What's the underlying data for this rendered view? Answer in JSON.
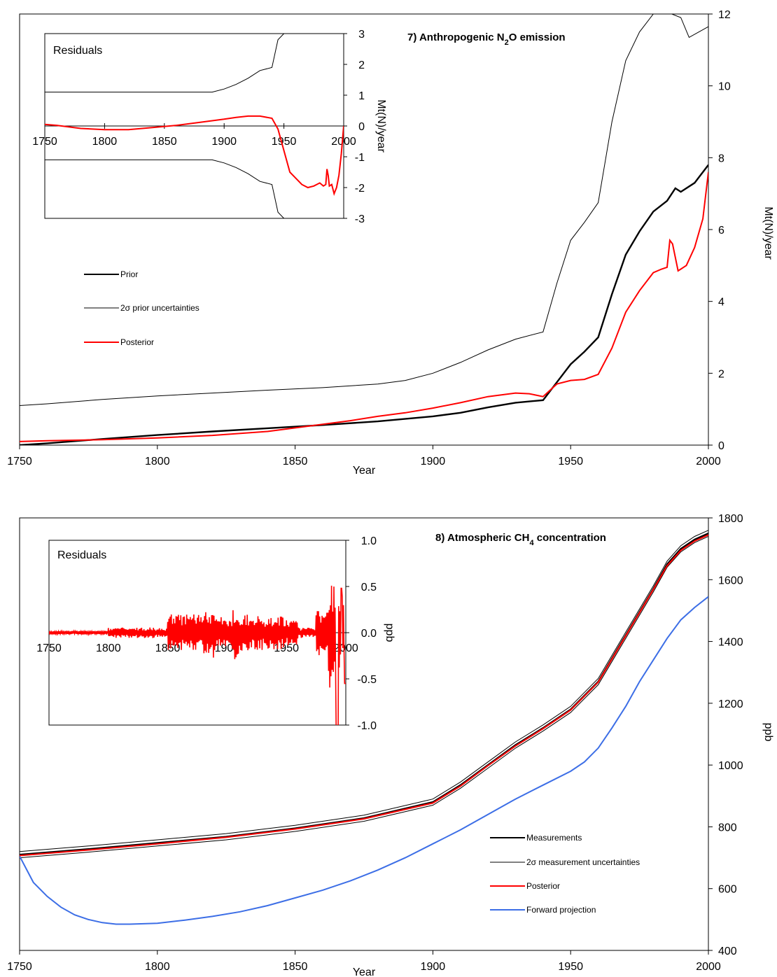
{
  "chart_data": [
    {
      "id": "n2o",
      "type": "line",
      "title_prefix": "7) Anthropogenic N",
      "title_sub": "2",
      "title_suffix": "O emission",
      "xlabel": "Year",
      "ylabel": "Mt(N)/year",
      "xlim": [
        1750,
        2000
      ],
      "ylim": [
        0,
        12
      ],
      "x_ticks": [
        "1750",
        "1800",
        "1850",
        "1900",
        "1950",
        "2000"
      ],
      "y_ticks": [
        "0",
        "2",
        "4",
        "6",
        "8",
        "10",
        "12"
      ],
      "legend": [
        "Prior",
        "2σ prior uncertainties",
        "Posterior"
      ],
      "colors": {
        "prior": "#000000",
        "uncertainty": "#000000",
        "posterior": "#ff0000"
      },
      "series": [
        {
          "key": "prior",
          "name": "Prior",
          "x": [
            1750,
            1760,
            1780,
            1800,
            1820,
            1840,
            1860,
            1880,
            1900,
            1910,
            1920,
            1930,
            1940,
            1945,
            1950,
            1955,
            1960,
            1965,
            1970,
            1975,
            1980,
            1985,
            1988,
            1990,
            1995,
            2000
          ],
          "y": [
            0.0,
            0.05,
            0.17,
            0.28,
            0.38,
            0.47,
            0.56,
            0.66,
            0.8,
            0.9,
            1.05,
            1.18,
            1.25,
            1.75,
            2.25,
            2.6,
            3.0,
            4.2,
            5.3,
            5.95,
            6.5,
            6.8,
            7.15,
            7.05,
            7.3,
            7.8
          ]
        },
        {
          "key": "upper",
          "name": "2σ prior uncertainties",
          "x": [
            1750,
            1760,
            1780,
            1800,
            1820,
            1840,
            1860,
            1880,
            1890,
            1900,
            1910,
            1920,
            1930,
            1940,
            1945,
            1950,
            1955,
            1960,
            1965,
            1970,
            1975,
            1980,
            1985,
            1990,
            1993,
            2000
          ],
          "y": [
            1.1,
            1.15,
            1.27,
            1.37,
            1.45,
            1.53,
            1.6,
            1.7,
            1.8,
            2.0,
            2.3,
            2.65,
            2.95,
            3.15,
            4.5,
            5.7,
            6.2,
            6.75,
            9.0,
            10.7,
            11.5,
            12.0,
            12.05,
            11.9,
            11.35,
            11.65
          ]
        },
        {
          "key": "posterior",
          "name": "Posterior",
          "x": [
            1750,
            1760,
            1780,
            1800,
            1820,
            1840,
            1860,
            1870,
            1880,
            1890,
            1900,
            1910,
            1920,
            1930,
            1935,
            1940,
            1945,
            1950,
            1955,
            1960,
            1965,
            1970,
            1975,
            1980,
            1983,
            1985,
            1986,
            1987,
            1989,
            1990,
            1992,
            1995,
            1998,
            2000
          ],
          "y": [
            0.1,
            0.12,
            0.15,
            0.2,
            0.27,
            0.38,
            0.58,
            0.68,
            0.8,
            0.9,
            1.03,
            1.18,
            1.35,
            1.45,
            1.43,
            1.35,
            1.7,
            1.8,
            1.83,
            1.97,
            2.7,
            3.7,
            4.3,
            4.8,
            4.9,
            4.95,
            5.7,
            5.6,
            4.85,
            4.9,
            5.0,
            5.5,
            6.3,
            7.6
          ]
        }
      ],
      "inset": {
        "title": "Residuals",
        "ylabel": "Mt(N)/year",
        "xlim": [
          1750,
          2000
        ],
        "ylim": [
          -3,
          3
        ],
        "x_ticks": [
          "1750",
          "1800",
          "1850",
          "1900",
          "1950",
          "2000"
        ],
        "y_ticks": [
          "-3",
          "-2",
          "-1",
          "0",
          "1",
          "2",
          "3"
        ],
        "series": [
          {
            "key": "upper",
            "x": [
              1750,
              1890,
              1900,
              1910,
              1920,
              1930,
              1940,
              1945,
              1950
            ],
            "y": [
              1.1,
              1.1,
              1.2,
              1.35,
              1.55,
              1.8,
              1.9,
              2.8,
              3.0
            ]
          },
          {
            "key": "lower",
            "x": [
              1750,
              1890,
              1900,
              1910,
              1920,
              1930,
              1940,
              1945,
              1950
            ],
            "y": [
              -1.1,
              -1.1,
              -1.2,
              -1.35,
              -1.55,
              -1.8,
              -1.9,
              -2.8,
              -3.0
            ]
          },
          {
            "key": "residual",
            "x": [
              1750,
              1760,
              1780,
              1800,
              1820,
              1840,
              1860,
              1880,
              1900,
              1910,
              1920,
              1930,
              1940,
              1945,
              1950,
              1955,
              1960,
              1965,
              1970,
              1975,
              1980,
              1983,
              1985,
              1986,
              1987,
              1988,
              1990,
              1992,
              1994,
              1996,
              1998,
              2000
            ],
            "y": [
              0.05,
              0.02,
              -0.08,
              -0.12,
              -0.12,
              -0.05,
              0.02,
              0.12,
              0.22,
              0.28,
              0.32,
              0.32,
              0.25,
              -0.1,
              -0.8,
              -1.5,
              -1.7,
              -1.9,
              -2.0,
              -1.95,
              -1.85,
              -1.95,
              -1.9,
              -1.4,
              -1.6,
              -1.95,
              -1.9,
              -2.2,
              -2.0,
              -1.6,
              -0.9,
              0.0
            ]
          }
        ]
      }
    },
    {
      "id": "ch4",
      "type": "line",
      "title_prefix": "8) Atmospheric CH",
      "title_sub": "4",
      "title_suffix": " concentration",
      "xlabel": "Year",
      "ylabel": "ppb",
      "xlim": [
        1750,
        2000
      ],
      "ylim": [
        400,
        1800
      ],
      "x_ticks": [
        "1750",
        "1800",
        "1850",
        "1900",
        "1950",
        "2000"
      ],
      "y_ticks": [
        "400",
        "600",
        "800",
        "1000",
        "1200",
        "1400",
        "1600",
        "1800"
      ],
      "legend": [
        "Measurements",
        "2σ measurement uncertainties",
        "Posterior",
        "Forward projection"
      ],
      "colors": {
        "measurements": "#000000",
        "uncertainty": "#000000",
        "posterior": "#ff0000",
        "forward": "#3c6ee6"
      },
      "series": [
        {
          "key": "measurements",
          "name": "Measurements",
          "x": [
            1750,
            1775,
            1800,
            1825,
            1850,
            1875,
            1900,
            1910,
            1920,
            1930,
            1940,
            1950,
            1960,
            1970,
            1980,
            1985,
            1990,
            1995,
            2000
          ],
          "y": [
            710,
            728,
            748,
            768,
            795,
            828,
            880,
            935,
            1000,
            1065,
            1120,
            1180,
            1270,
            1420,
            1570,
            1650,
            1700,
            1730,
            1750
          ]
        },
        {
          "key": "posterior",
          "name": "Posterior",
          "x": [
            1750,
            1775,
            1800,
            1825,
            1850,
            1875,
            1900,
            1910,
            1920,
            1930,
            1940,
            1950,
            1960,
            1970,
            1980,
            1985,
            1990,
            1995,
            2000
          ],
          "y": [
            707,
            725,
            745,
            766,
            793,
            826,
            877,
            932,
            998,
            1062,
            1118,
            1178,
            1268,
            1418,
            1568,
            1645,
            1695,
            1725,
            1745
          ]
        },
        {
          "key": "forward",
          "name": "Forward projection",
          "x": [
            1750,
            1755,
            1760,
            1765,
            1770,
            1775,
            1780,
            1785,
            1790,
            1800,
            1810,
            1820,
            1830,
            1840,
            1850,
            1860,
            1870,
            1880,
            1890,
            1900,
            1910,
            1920,
            1930,
            1940,
            1950,
            1955,
            1960,
            1965,
            1970,
            1975,
            1980,
            1985,
            1990,
            1995,
            2000
          ],
          "y": [
            705,
            620,
            575,
            540,
            515,
            500,
            490,
            485,
            485,
            488,
            498,
            510,
            525,
            545,
            570,
            595,
            625,
            660,
            700,
            745,
            790,
            840,
            890,
            935,
            980,
            1010,
            1055,
            1120,
            1190,
            1270,
            1340,
            1410,
            1470,
            1510,
            1545
          ]
        }
      ],
      "inset": {
        "title": "Residuals",
        "ylabel": "ppb",
        "xlim": [
          1750,
          2000
        ],
        "ylim": [
          -1.0,
          1.0
        ],
        "x_ticks": [
          "1750",
          "1800",
          "1850",
          "1900",
          "1950",
          "2000"
        ],
        "y_ticks": [
          "-1.0",
          "-0.5",
          "0.0",
          "0.5",
          "1.0"
        ],
        "series": [
          {
            "key": "residual",
            "amplitude_bands": [
              [
                1750,
                1800,
                0.02
              ],
              [
                1800,
                1840,
                0.06
              ],
              [
                1840,
                1850,
                0.05
              ],
              [
                1850,
                1880,
                0.2
              ],
              [
                1880,
                1890,
                0.28
              ],
              [
                1890,
                1905,
                0.18
              ],
              [
                1905,
                1910,
                0.3
              ],
              [
                1910,
                1930,
                0.2
              ],
              [
                1930,
                1950,
                0.18
              ],
              [
                1950,
                1960,
                0.15
              ],
              [
                1960,
                1975,
                0.06
              ],
              [
                1975,
                1985,
                0.25
              ],
              [
                1985,
                1992,
                0.6
              ],
              [
                1992,
                2000,
                0.45
              ]
            ]
          }
        ]
      }
    }
  ]
}
